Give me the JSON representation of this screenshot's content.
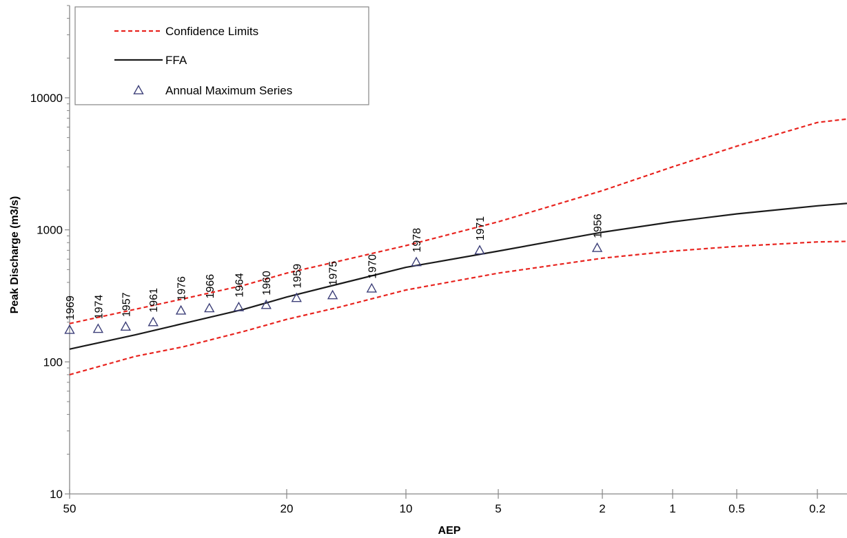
{
  "chart_data": {
    "type": "scatter",
    "xlabel": "AEP",
    "ylabel": "Peak Discharge (m3/s)",
    "yscale": "log",
    "xscale": "probability (normal)",
    "ylim": [
      10,
      60000
    ],
    "xlim": [
      50,
      0.1
    ],
    "yticks": [
      {
        "value": 10,
        "label": "10"
      },
      {
        "value": 100,
        "label": "100"
      },
      {
        "value": 1000,
        "label": "1000"
      },
      {
        "value": 10000,
        "label": "10000"
      }
    ],
    "xticks": [
      {
        "value": 50,
        "label": "50"
      },
      {
        "value": 20,
        "label": "20"
      },
      {
        "value": 10,
        "label": "10"
      },
      {
        "value": 5,
        "label": "5"
      },
      {
        "value": 2,
        "label": "2"
      },
      {
        "value": 1,
        "label": "1"
      },
      {
        "value": 0.5,
        "label": "0.5"
      },
      {
        "value": 0.2,
        "label": "0.2"
      }
    ],
    "legend": {
      "position": "top-left",
      "entries": [
        {
          "label": "Confidence Limits",
          "style": "dashed-line",
          "color": "#e8231e"
        },
        {
          "label": "FFA",
          "style": "solid-line",
          "color": "#1a1a1a"
        },
        {
          "label": "Annual Maximum Series",
          "style": "triangle-marker",
          "color": "#3c3f78"
        }
      ]
    },
    "series": [
      {
        "role": "ffa",
        "style": "solid",
        "color": "#1a1a1a",
        "points": [
          [
            50,
            125
          ],
          [
            40,
            160
          ],
          [
            33,
            195
          ],
          [
            25,
            250
          ],
          [
            20,
            310
          ],
          [
            15,
            390
          ],
          [
            10,
            520
          ],
          [
            5,
            690
          ],
          [
            2,
            960
          ],
          [
            1,
            1150
          ],
          [
            0.5,
            1320
          ],
          [
            0.2,
            1520
          ],
          [
            0.1,
            1650
          ]
        ]
      },
      {
        "role": "upper-confidence",
        "style": "dashed",
        "color": "#e8231e",
        "points": [
          [
            50,
            195
          ],
          [
            40,
            250
          ],
          [
            33,
            300
          ],
          [
            25,
            380
          ],
          [
            20,
            470
          ],
          [
            15,
            580
          ],
          [
            10,
            760
          ],
          [
            5,
            1150
          ],
          [
            2,
            1980
          ],
          [
            1,
            3000
          ],
          [
            0.5,
            4300
          ],
          [
            0.2,
            6500
          ],
          [
            0.1,
            7300
          ]
        ]
      },
      {
        "role": "lower-confidence",
        "style": "dashed",
        "color": "#e8231e",
        "points": [
          [
            50,
            80
          ],
          [
            40,
            110
          ],
          [
            33,
            130
          ],
          [
            25,
            170
          ],
          [
            20,
            210
          ],
          [
            15,
            260
          ],
          [
            10,
            350
          ],
          [
            5,
            470
          ],
          [
            2,
            610
          ],
          [
            1,
            690
          ],
          [
            0.5,
            750
          ],
          [
            0.2,
            810
          ],
          [
            0.1,
            825
          ]
        ]
      }
    ],
    "observations": [
      {
        "year": "1969",
        "aep": 50.0,
        "value": 175
      },
      {
        "year": "1974",
        "aep": 45.6,
        "value": 178
      },
      {
        "year": "1957",
        "aep": 41.4,
        "value": 185
      },
      {
        "year": "1961",
        "aep": 37.3,
        "value": 200
      },
      {
        "year": "1976",
        "aep": 33.3,
        "value": 245
      },
      {
        "year": "1966",
        "aep": 29.4,
        "value": 255
      },
      {
        "year": "1964",
        "aep": 25.6,
        "value": 260
      },
      {
        "year": "1960",
        "aep": 22.3,
        "value": 270
      },
      {
        "year": "1959",
        "aep": 19.0,
        "value": 305
      },
      {
        "year": "1975",
        "aep": 15.6,
        "value": 320
      },
      {
        "year": "1970",
        "aep": 12.4,
        "value": 360
      },
      {
        "year": "1978",
        "aep": 9.3,
        "value": 570
      },
      {
        "year": "1971",
        "aep": 5.8,
        "value": 700
      },
      {
        "year": "1956",
        "aep": 2.1,
        "value": 730
      }
    ]
  }
}
